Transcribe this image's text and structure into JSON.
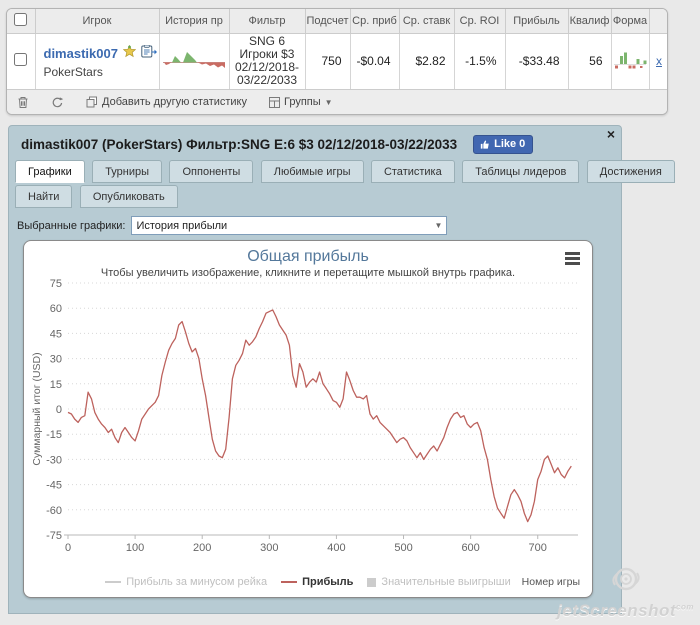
{
  "page": {
    "watermark": "jetScreenshot",
    "watermark_suffix": "com"
  },
  "stats_table": {
    "headers": [
      "Игрок",
      "История пр",
      "Фильтр",
      "Подсчет",
      "Ср. приб",
      "Ср. ставк",
      "Ср. ROI",
      "Прибыль",
      "Квалиф",
      "Форма"
    ],
    "row": {
      "player": "dimastik007",
      "site": "PokerStars",
      "filter_lines": [
        "SNG 6",
        "Игроки $3",
        "02/12/2018-",
        "03/22/2033"
      ],
      "count": "750",
      "avg_profit": "-$0.04",
      "avg_stake": "$2.82",
      "avg_roi": "-1.5%",
      "profit": "-$33.48",
      "qualif": "56",
      "remove_label": "x"
    },
    "toolbar": {
      "add_label": "Добавить другую статистику",
      "groups_label": "Группы",
      "caret": "▼"
    }
  },
  "panel": {
    "title": "dimastik007 (PokerStars) Фильтр:SNG E:6 $3 02/12/2018-03/22/2033",
    "like_label": "Like 0",
    "close_label": "×",
    "tabs_row1": [
      "Графики",
      "Турниры",
      "Оппоненты",
      "Любимые игры",
      "Статистика",
      "Таблицы лидеров",
      "Достижения"
    ],
    "tabs_row2": [
      "Найти",
      "Опубликовать"
    ],
    "active_tab": "Графики",
    "select_label": "Выбранные графики:",
    "select_value": "История прибыли",
    "select_caret": "▼"
  },
  "chart_data": {
    "type": "line",
    "title": "Общая прибыль",
    "subtitle": "Чтобы увеличить изображение, кликните и перетащите мышкой внутрь графика.",
    "ylabel": "Суммарный итог (USD)",
    "xlabel": "Номер игры",
    "ylim": [
      -75,
      75
    ],
    "ytick_step": 15,
    "xlim": [
      0,
      760
    ],
    "xticks": [
      0,
      100,
      200,
      300,
      400,
      500,
      600,
      700
    ],
    "grid": "horizontal-dotted",
    "line_color": "#bd625d",
    "legend": [
      {
        "label": "Прибыль за минусом рейка",
        "type": "line",
        "color": "#cccccc",
        "enabled": false
      },
      {
        "label": "Прибыль",
        "type": "line",
        "color": "#bd625d",
        "enabled": true
      },
      {
        "label": "Значительные выигрыши",
        "type": "square",
        "color": "#cccccc",
        "enabled": false
      }
    ],
    "series": [
      {
        "name": "Прибыль",
        "x_start": 0,
        "x_step": 5,
        "values": [
          -2,
          -3,
          -6,
          -8,
          -5,
          -4,
          10,
          6,
          -2,
          -6,
          -9,
          -11,
          -14,
          -12,
          -17,
          -20,
          -14,
          -11,
          -14,
          -17,
          -19,
          -13,
          -6,
          -3,
          0,
          2,
          4,
          8,
          20,
          28,
          35,
          39,
          42,
          50,
          52,
          46,
          39,
          34,
          36,
          30,
          18,
          8,
          -5,
          -18,
          -25,
          -28,
          -29,
          -24,
          -5,
          18,
          26,
          29,
          33,
          41,
          38,
          40,
          43,
          48,
          52,
          57,
          58,
          59,
          55,
          50,
          47,
          44,
          38,
          20,
          13,
          27,
          22,
          13,
          16,
          18,
          16,
          22,
          15,
          12,
          9,
          5,
          4,
          1,
          6,
          22,
          17,
          11,
          7,
          7,
          6,
          8,
          -3,
          -6,
          -4,
          -8,
          -10,
          -12,
          -14,
          -17,
          -20,
          -18,
          -17,
          -19,
          -23,
          -26,
          -29,
          -26,
          -30,
          -27,
          -24,
          -22,
          -25,
          -21,
          -17,
          -11,
          -6,
          -3,
          -2,
          -5,
          -4,
          -9,
          -11,
          -9,
          -8,
          -13,
          -23,
          -30,
          -42,
          -52,
          -59,
          -62,
          -65,
          -58,
          -51,
          -48,
          -51,
          -55,
          -62,
          -67,
          -63,
          -55,
          -42,
          -37,
          -30,
          -28,
          -33,
          -38,
          -35,
          -39,
          -41,
          -37,
          -34
        ]
      }
    ]
  },
  "colors": {
    "panel_bg": "#b7cbd3",
    "negative": "#c4736c",
    "accent_link": "#3c6ab0",
    "like_blue": "#4167b1",
    "chart_title": "#54789b"
  }
}
